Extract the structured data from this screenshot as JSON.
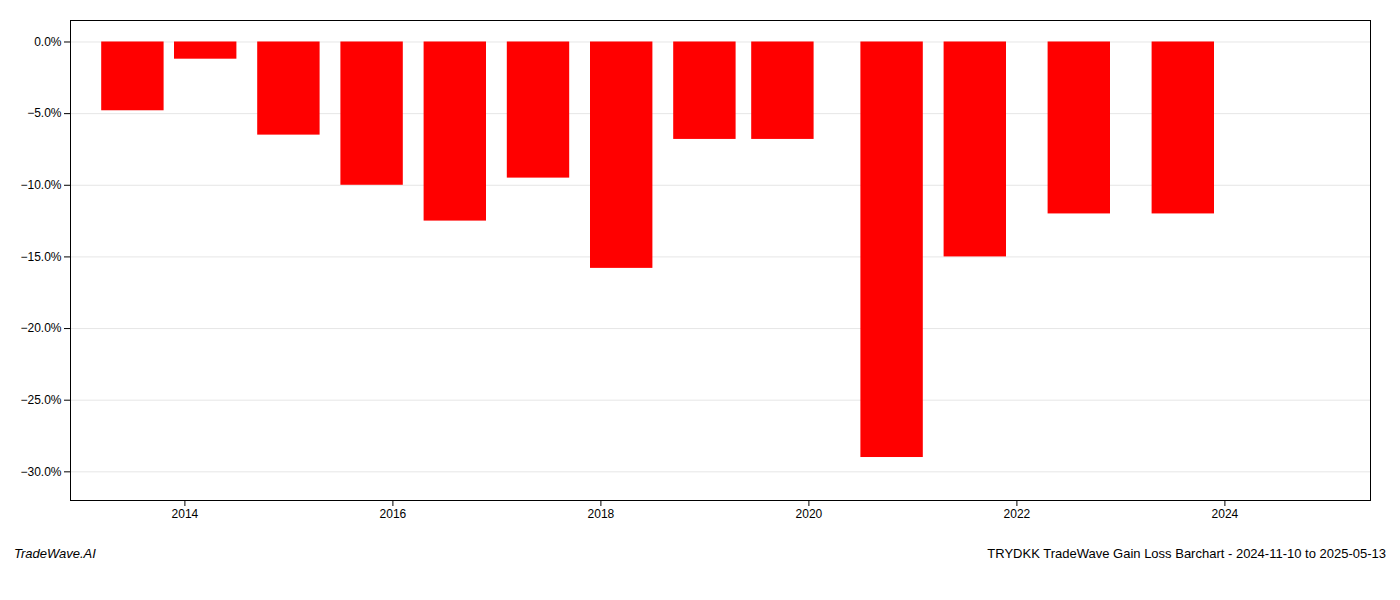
{
  "chart_data": {
    "type": "bar",
    "title": "TRYDKK TradeWave Gain Loss Barchart - 2024-11-10 to 2025-05-13",
    "annotations": [
      "TradeWave.AI"
    ],
    "x": [
      2013.5,
      2014.2,
      2015.0,
      2015.8,
      2016.6,
      2017.4,
      2018.2,
      2019.0,
      2019.75,
      2020.8,
      2021.6,
      2022.6,
      2023.6
    ],
    "values": [
      -4.8,
      -1.2,
      -6.5,
      -10.0,
      -12.5,
      -9.5,
      -15.8,
      -6.8,
      -6.8,
      -29.0,
      -15.0,
      -12.0,
      -12.0
    ],
    "color": "#FF0000",
    "xlim": [
      2012.9,
      2025.4
    ],
    "xticks": [
      2014,
      2016,
      2018,
      2020,
      2022,
      2024
    ],
    "ylim": [
      -32,
      1.5
    ],
    "yticks": [
      {
        "value": 0.0,
        "label": "0.0%"
      },
      {
        "value": -5.0,
        "label": "−5.0%"
      },
      {
        "value": -10.0,
        "label": "−10.0%"
      },
      {
        "value": -15.0,
        "label": "−15.0%"
      },
      {
        "value": -20.0,
        "label": "−20.0%"
      },
      {
        "value": -25.0,
        "label": "−25.0%"
      },
      {
        "value": -30.0,
        "label": "−30.0%"
      }
    ],
    "grid": true
  }
}
